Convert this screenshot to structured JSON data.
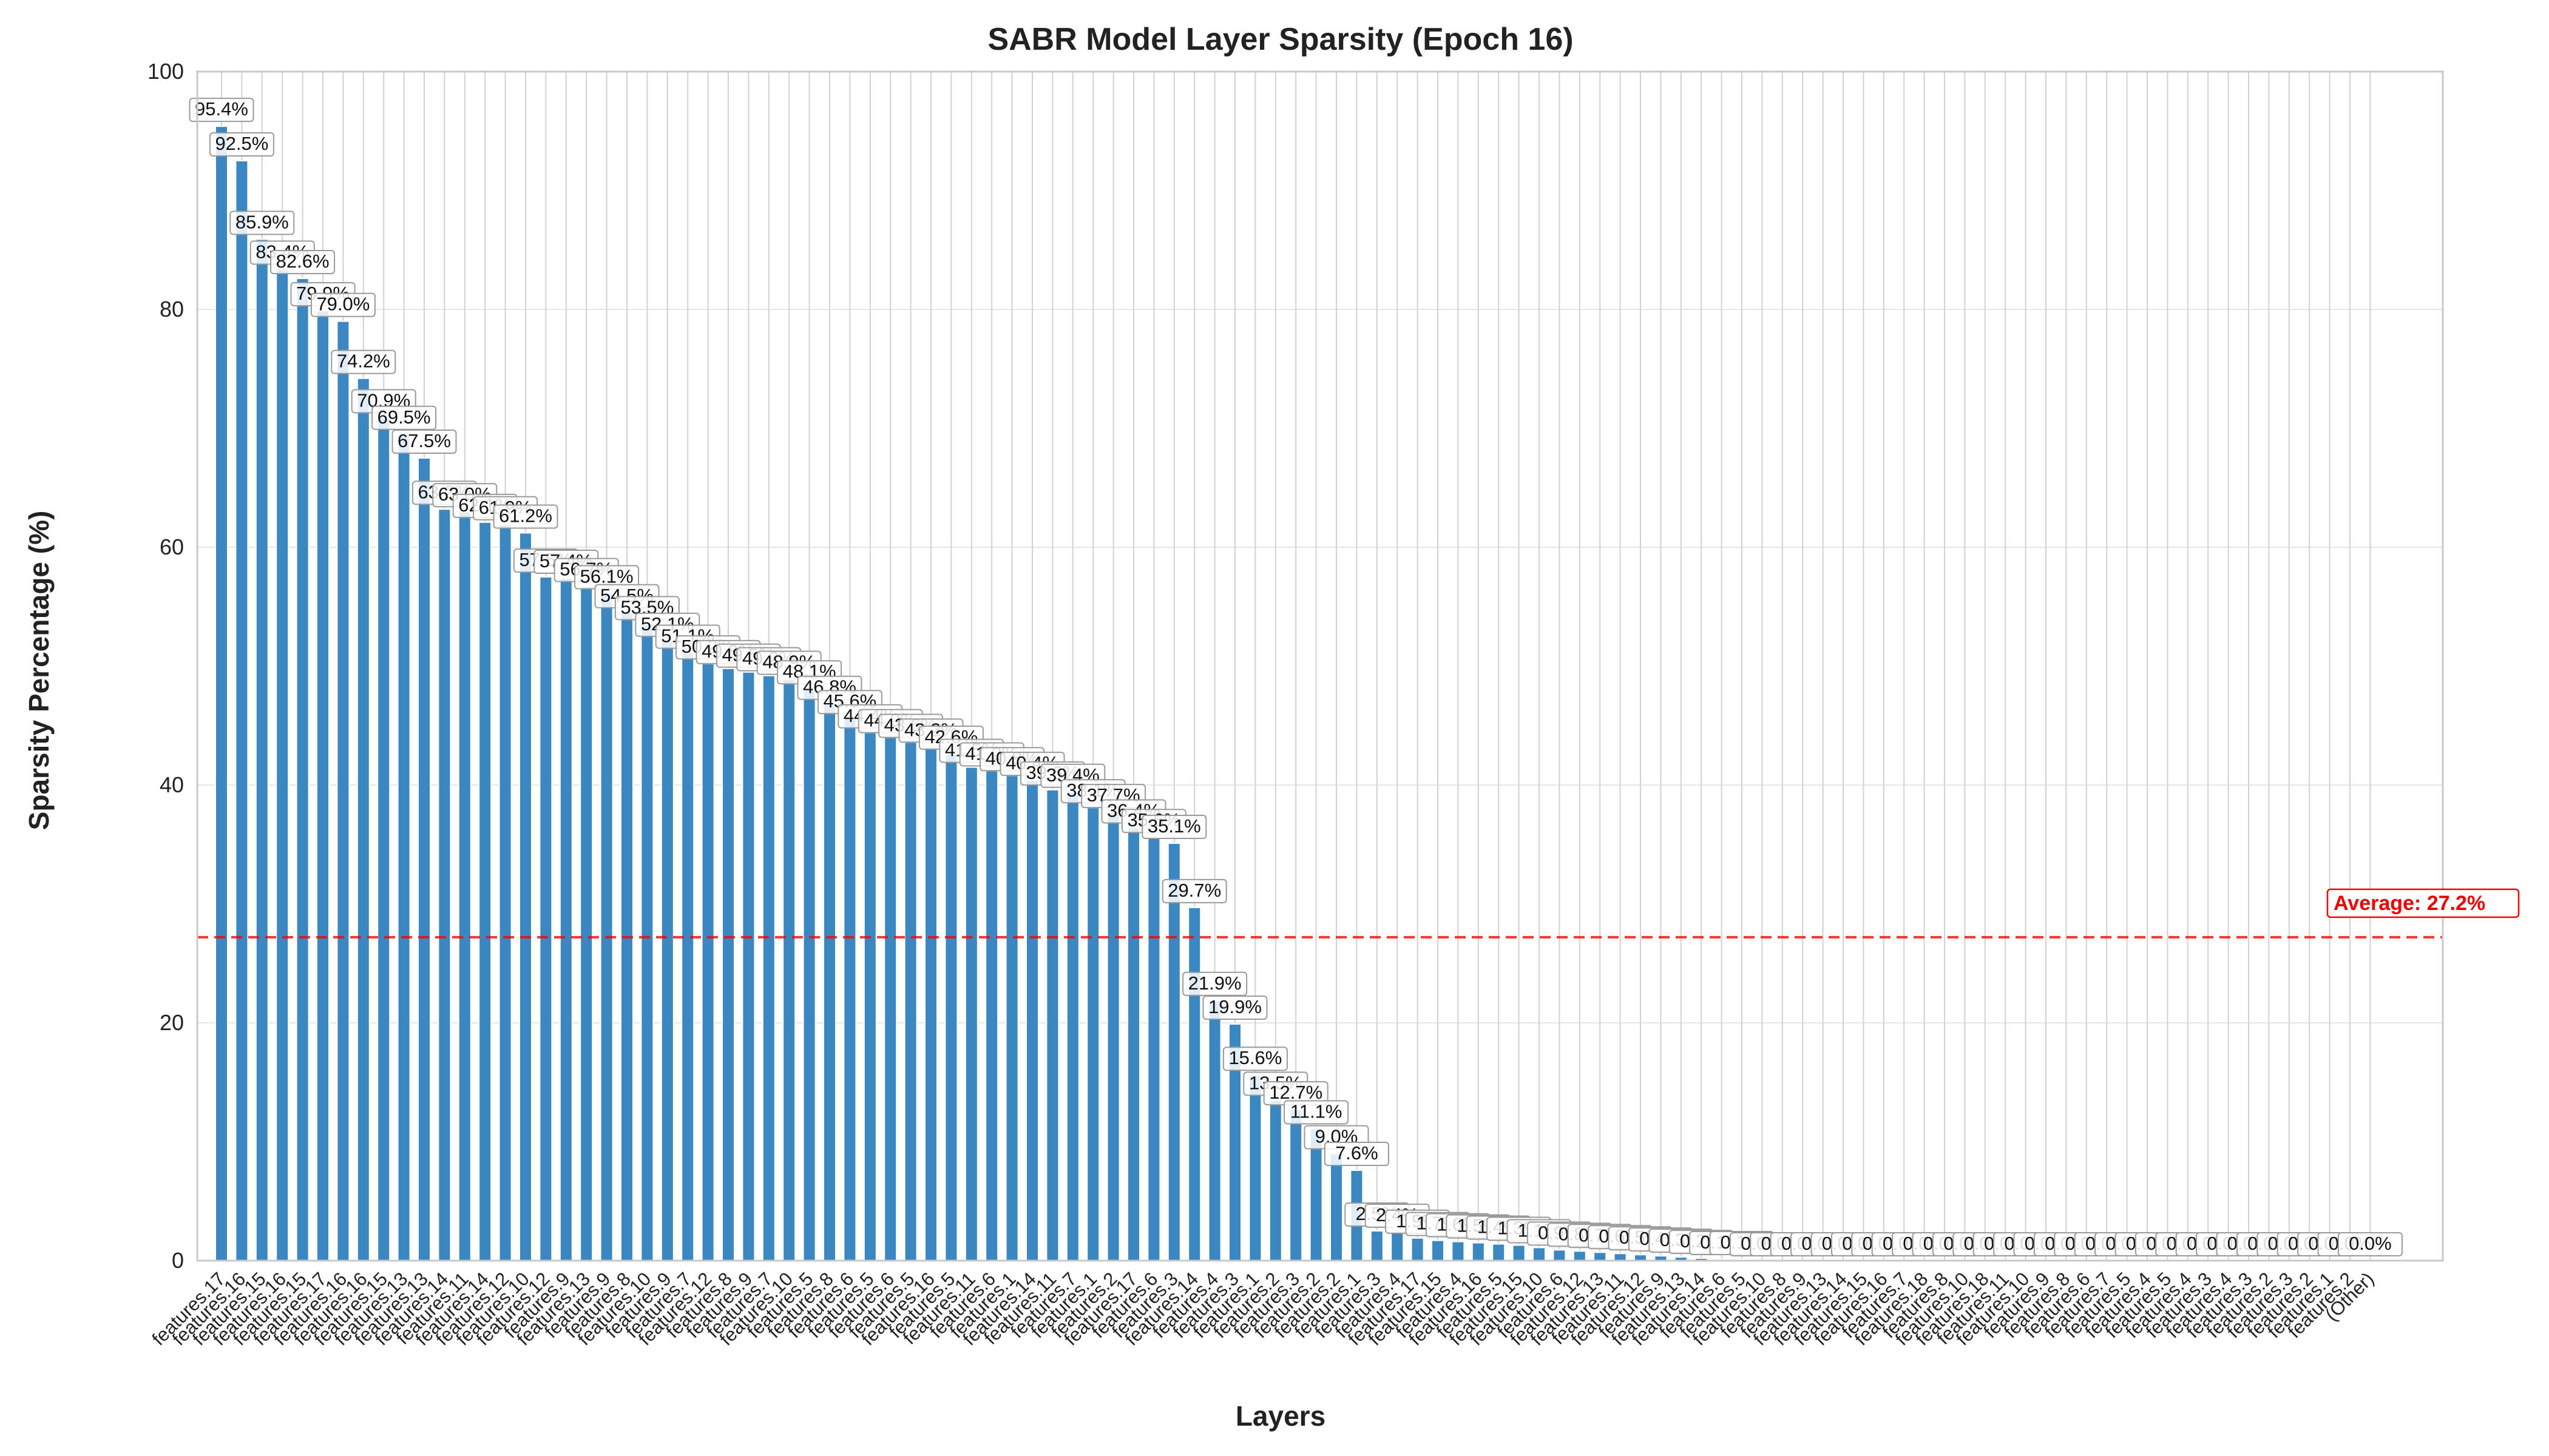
{
  "chart_data": {
    "type": "bar",
    "title": "SABR Model Layer Sparsity (Epoch 16)",
    "xlabel": "Layers",
    "ylabel": "Sparsity Percentage (%)",
    "ylim": [
      0,
      100
    ],
    "yticks": [
      0,
      20,
      40,
      60,
      80,
      100
    ],
    "grid": true,
    "bar_color": "#3b87c2",
    "average": {
      "value": 27.2,
      "label": "Average: 27.2%",
      "color": "#ff0000",
      "style": "dashed"
    },
    "categories": [
      "features.17",
      "features.16",
      "features.15",
      "features.16",
      "features.15",
      "features.17",
      "features.16",
      "features.16",
      "features.15",
      "features.13",
      "features.13",
      "features.14",
      "features.11",
      "features.14",
      "features.12",
      "features.10",
      "features.12",
      "features.9",
      "features.13",
      "features.9",
      "features.8",
      "features.10",
      "features.9",
      "features.7",
      "features.12",
      "features.8",
      "features.9",
      "features.7",
      "features.10",
      "features.5",
      "features.8",
      "features.6",
      "features.5",
      "features.6",
      "features.5",
      "features.16",
      "features.5",
      "features.11",
      "features.6",
      "features.1",
      "features.14",
      "features.11",
      "features.7",
      "features.1",
      "features.2",
      "features.17",
      "features.6",
      "features.3",
      "features.14",
      "features.4",
      "features.3",
      "features.1",
      "features.2",
      "features.3",
      "features.2",
      "features.2",
      "features.1",
      "features.3",
      "features.4",
      "features.17",
      "features.15",
      "features.4",
      "features.16",
      "features.5",
      "features.15",
      "features.10",
      "features.6",
      "features.12",
      "features.13",
      "features.11",
      "features.12",
      "features.9",
      "features.13",
      "features.14",
      "features.6",
      "features.5",
      "features.10",
      "features.8",
      "features.9",
      "features.13",
      "features.14",
      "features.15",
      "features.16",
      "features.7",
      "features.18",
      "features.8",
      "features.10",
      "features.18",
      "features.11",
      "features.10",
      "features.9",
      "features.8",
      "features.6",
      "features.7",
      "features.5",
      "features.4",
      "features.5",
      "features.4",
      "features.3",
      "features.4",
      "features.3",
      "features.2",
      "features.3",
      "features.2",
      "features.1",
      "features.2",
      "(Other)"
    ],
    "values": [
      95.4,
      92.5,
      85.9,
      83.4,
      82.6,
      79.9,
      79.0,
      74.2,
      70.9,
      69.5,
      67.5,
      63.2,
      63.0,
      62.1,
      61.9,
      61.2,
      57.5,
      57.4,
      56.7,
      56.1,
      54.5,
      53.5,
      52.1,
      51.1,
      50.2,
      49.8,
      49.5,
      49.2,
      48.9,
      48.1,
      46.8,
      45.6,
      44.4,
      44.0,
      43.6,
      43.2,
      42.6,
      41.5,
      41.2,
      40.8,
      40.4,
      39.6,
      39.4,
      38.1,
      37.7,
      36.4,
      35.6,
      35.1,
      29.7,
      21.9,
      19.9,
      15.6,
      13.5,
      12.7,
      11.1,
      9.0,
      7.6,
      2.5,
      2.4,
      1.9,
      1.7,
      1.6,
      1.5,
      1.4,
      1.3,
      1.1,
      0.9,
      0.8,
      0.7,
      0.6,
      0.5,
      0.4,
      0.3,
      0.2,
      0.1,
      0.1,
      0.0,
      0.0,
      0.0,
      0.0,
      0.0,
      0.0,
      0.0,
      0.0,
      0.0,
      0.0,
      0.0,
      0.0,
      0.0,
      0.0,
      0.0,
      0.0,
      0.0,
      0.0,
      0.0,
      0.0,
      0.0,
      0.0,
      0.0,
      0.0,
      0.0,
      0.0,
      0.0,
      0.0,
      0.0,
      0.0,
      0.0
    ],
    "data_labels": [
      "95.4%",
      "92.5%",
      "85.9%",
      "83.4%",
      "82.6%",
      "79.9%",
      "79.0%",
      "74.2%",
      "70.9%",
      "69.5%",
      "67.5%",
      "63.2%",
      "63.0%",
      "62.1%",
      "61.9%",
      "61.2%",
      "57.5%",
      "57.4%",
      "56.7%",
      "56.1%",
      "54.5%",
      "53.5%",
      "52.1%",
      "51.1%",
      "50.2%",
      "49.8%",
      "49.5%",
      "49.2%",
      "48.9%",
      "48.1%",
      "46.8%",
      "45.6%",
      "44.4%",
      "44.0%",
      "43.6%",
      "43.2%",
      "42.6%",
      "41.5%",
      "41.2%",
      "40.8%",
      "40.4%",
      "39.6%",
      "39.4%",
      "38.1%",
      "37.7%",
      "36.4%",
      "35.6%",
      "35.1%",
      "29.7%",
      "21.9%",
      "19.9%",
      "15.6%",
      "13.5%",
      "12.7%",
      "11.1%",
      "9.0%",
      "7.6%",
      "2.5%",
      "2.4%",
      "1.9%",
      "1.7%",
      "1.6%",
      "1.5%",
      "1.4%",
      "1.3%",
      "1.1%",
      "0.9%",
      "0.8%",
      "0.7%",
      "0.6%",
      "0.5%",
      "0.4%",
      "0.3%",
      "0.2%",
      "0.1%",
      "0.1%",
      "0.0%",
      "0.0%",
      "0.0%",
      "0.0%",
      "0.0%",
      "0.0%",
      "0.0%",
      "0.0%",
      "0.0%",
      "0.0%",
      "0.0%",
      "0.0%",
      "0.0%",
      "0.0%",
      "0.0%",
      "0.0%",
      "0.0%",
      "0.0%",
      "0.0%",
      "0.0%",
      "0.0%",
      "0.0%",
      "0.0%",
      "0.0%",
      "0.0%",
      "0.0%",
      "0.0%",
      "0.0%",
      "0.0%",
      "0.0%",
      "0.0%"
    ]
  }
}
